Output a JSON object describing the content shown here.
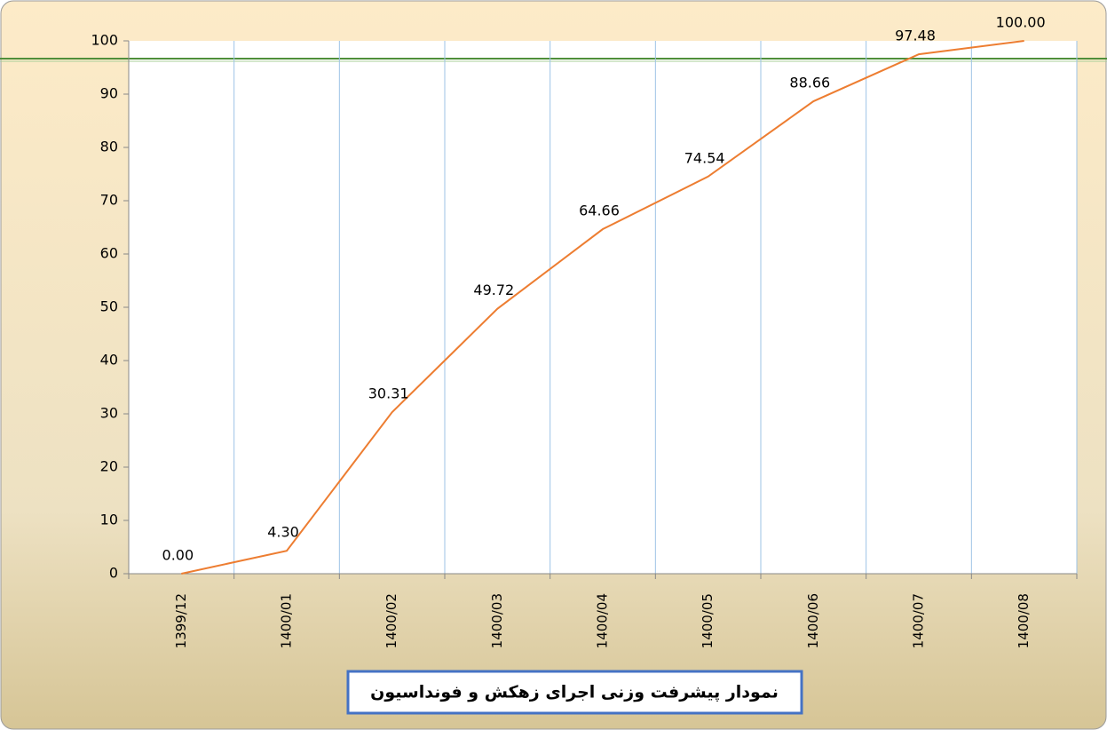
{
  "chart_data": {
    "type": "line",
    "title": "نمودار پیشرفت وزنی اجرای زهکش و فونداسیون",
    "categories": [
      "1399/12",
      "1400/01",
      "1400/02",
      "1400/03",
      "1400/04",
      "1400/05",
      "1400/06",
      "1400/07",
      "1400/08"
    ],
    "values": [
      0,
      4.3,
      30.31,
      49.72,
      64.66,
      74.54,
      88.66,
      97.48,
      100
    ],
    "value_labels": [
      "0.00",
      "4.30",
      "30.31",
      "49.72",
      "64.66",
      "74.54",
      "88.66",
      "97.48",
      "100.00"
    ],
    "color": "#ed7d31",
    "ylim": [
      0,
      100
    ],
    "yticks": [
      0,
      10,
      20,
      30,
      40,
      50,
      60,
      70,
      80,
      90,
      100
    ],
    "grid": true
  }
}
